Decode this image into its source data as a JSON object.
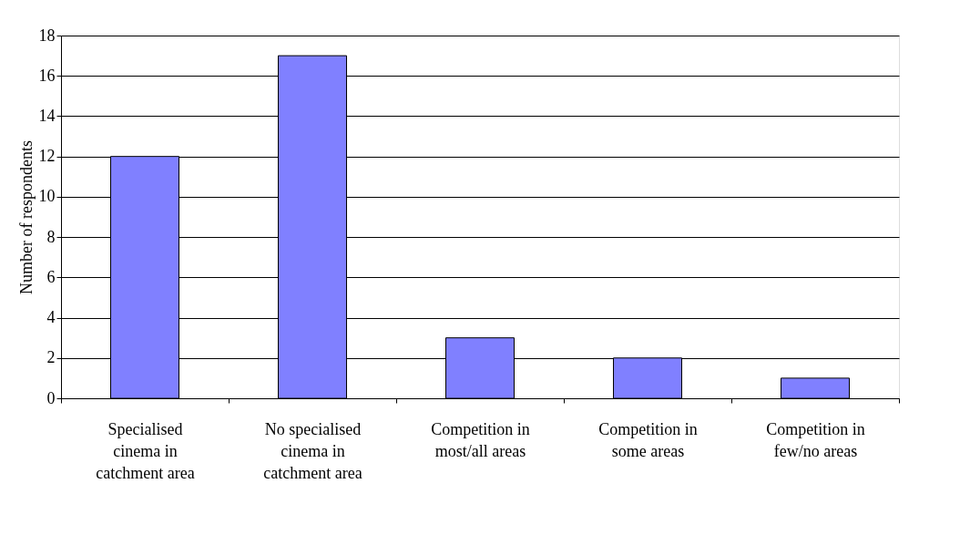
{
  "chart_data": {
    "type": "bar",
    "ylabel": "Number of respondents",
    "categories": [
      "Specialised cinema in catchment area",
      "No specialised cinema in catchment area",
      "Competition in most/all areas",
      "Competition in some areas",
      "Competition in few/no areas"
    ],
    "values": [
      12,
      17,
      3,
      2,
      1
    ],
    "color": "#8080ff",
    "ylim": [
      0,
      18
    ],
    "yticks": [
      0,
      2,
      4,
      6,
      8,
      10,
      12,
      14,
      16,
      18
    ],
    "grid": "y"
  }
}
